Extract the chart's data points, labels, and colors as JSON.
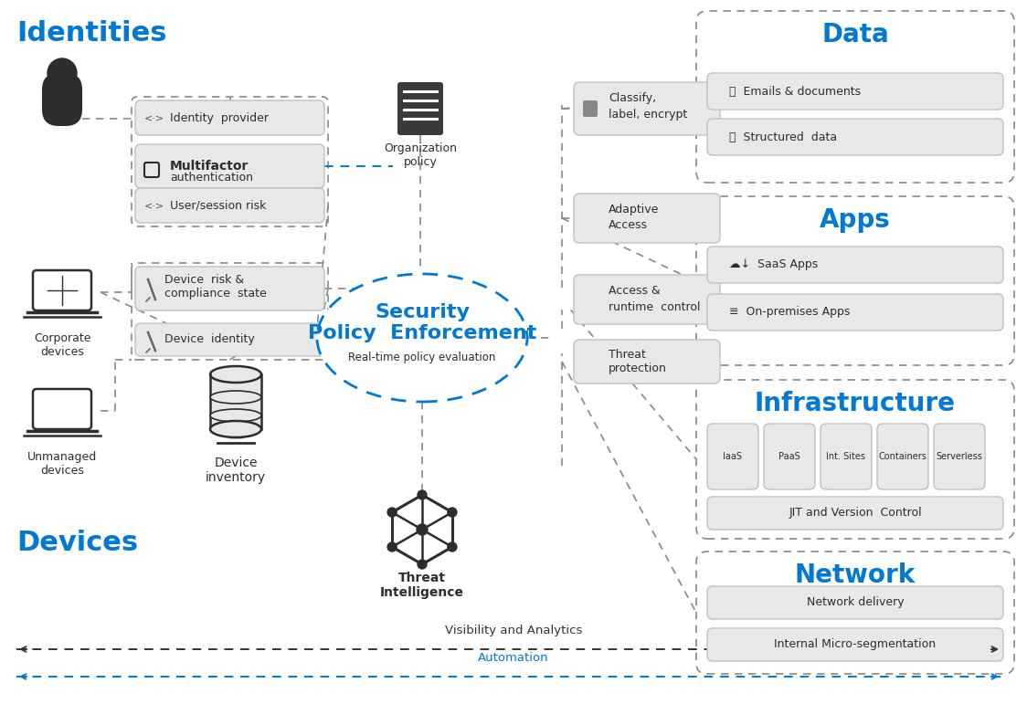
{
  "bg_color": "#ffffff",
  "blue": "#0078d4",
  "dark_gray": "#2d2d2d",
  "box_fill": "#e8e8e8",
  "box_edge": "#c0c0c0",
  "dash_gray": "#888888",
  "title_identities": "Identities",
  "title_devices": "Devices",
  "title_data": "Data",
  "title_apps": "Apps",
  "title_infrastructure": "Infrastructure",
  "title_network": "Network",
  "center_title1": "Security",
  "center_title2": "Policy  Enforcement",
  "center_sub": "Real-time policy evaluation",
  "org_policy": "Organization\npolicy",
  "threat_intel": "Threat\nIntelligence",
  "infra_cols": [
    "IaaS",
    "PaaS",
    "Int. Sites",
    "Containers",
    "Serverless"
  ],
  "infra_bottom": "JIT and Version  Control",
  "network_items": [
    "Network delivery",
    "Internal Micro-segmentation"
  ],
  "vis_label": "Visibility and Analytics",
  "auto_label": "Automation"
}
